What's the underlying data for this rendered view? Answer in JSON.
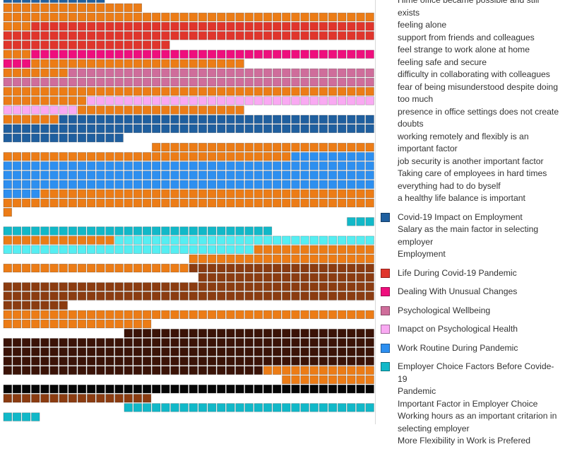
{
  "chart_data": {
    "type": "waffle",
    "title": "",
    "colors": {
      "dark_blue": "#1f5f9f",
      "red": "#e0352c",
      "magenta": "#ef0e7d",
      "mauve": "#cf6d9b",
      "pink": "#f9a9f2",
      "blue": "#2d8ff0",
      "teal": "#11b8c8",
      "cyan": "#55eef2",
      "orange": "#ec7c16",
      "brown": "#8b3c11",
      "dark_brown": "#3b1307",
      "black": "#050505"
    },
    "rows": [
      [
        [
          "dark_blue",
          11
        ]
      ],
      [
        [
          "orange",
          15
        ]
      ],
      [
        [
          "orange",
          40
        ]
      ],
      [
        [
          "orange",
          3
        ],
        [
          "red",
          37
        ]
      ],
      [
        [
          "red",
          40
        ]
      ],
      [
        [
          "red",
          18
        ]
      ],
      [
        [
          "orange",
          3
        ],
        [
          "magenta",
          37
        ]
      ],
      [
        [
          "magenta",
          3
        ],
        [
          "orange",
          23
        ]
      ],
      [
        [
          "orange",
          7
        ],
        [
          "mauve",
          33
        ]
      ],
      [
        [
          "mauve",
          40
        ]
      ],
      [
        [
          "orange",
          40
        ]
      ],
      [
        [
          "orange",
          9
        ],
        [
          "pink",
          31
        ]
      ],
      [
        [
          "pink",
          8
        ],
        [
          "orange",
          18
        ]
      ],
      [
        [
          "orange",
          6
        ],
        [
          "dark_blue",
          34
        ]
      ],
      [
        [
          "dark_blue",
          40
        ]
      ],
      [
        [
          "dark_blue",
          13
        ]
      ],
      [
        [
          "orange",
          24
        ]
      ],
      [
        [
          "orange",
          31
        ],
        [
          "blue",
          9
        ]
      ],
      [
        [
          "blue",
          40
        ]
      ],
      [
        [
          "blue",
          40
        ]
      ],
      [
        [
          "blue",
          40
        ]
      ],
      [
        [
          "blue",
          4
        ],
        [
          "orange",
          36
        ]
      ],
      [
        [
          "orange",
          40
        ]
      ],
      [
        [
          "orange",
          1
        ]
      ],
      [
        [
          "teal",
          3
        ]
      ],
      [
        [
          "teal",
          29
        ]
      ],
      [
        [
          "orange",
          12
        ],
        [
          "cyan",
          28
        ]
      ],
      [
        [
          "cyan",
          27
        ],
        [
          "orange",
          13
        ]
      ],
      [
        [
          "orange",
          20
        ]
      ],
      [
        [
          "orange",
          20
        ],
        [
          "brown",
          20
        ]
      ],
      [
        [
          "brown",
          19
        ]
      ],
      [
        [
          "brown",
          40
        ]
      ],
      [
        [
          "brown",
          40
        ]
      ],
      [
        [
          "brown",
          7
        ]
      ],
      [
        [
          "orange",
          40
        ]
      ],
      [
        [
          "orange",
          16
        ]
      ],
      [
        [
          "dark_brown",
          27
        ]
      ],
      [
        [
          "dark_brown",
          40
        ]
      ],
      [
        [
          "dark_brown",
          40
        ]
      ],
      [
        [
          "dark_brown",
          40
        ]
      ],
      [
        [
          "dark_brown",
          28
        ],
        [
          "orange",
          12
        ]
      ],
      [
        [
          "orange",
          10
        ]
      ],
      [
        [
          "black",
          40
        ]
      ],
      [
        [
          "brown",
          16
        ]
      ],
      [
        [
          "teal",
          27
        ]
      ],
      [
        [
          "teal",
          4
        ]
      ]
    ],
    "row_align": [
      "left",
      "left",
      "right",
      "left",
      "left",
      "left",
      "right",
      "left",
      "right",
      "left",
      "left",
      "right",
      "left",
      "right",
      "left",
      "left",
      "right",
      "left",
      "left",
      "left",
      "left",
      "left",
      "left",
      "left",
      "right",
      "left",
      "right",
      "left",
      "right",
      "left",
      "right",
      "left",
      "left",
      "left",
      "left",
      "left",
      "right",
      "left",
      "left",
      "left",
      "left",
      "right",
      "left",
      "left",
      "right",
      "left"
    ]
  },
  "legend": [
    {
      "color": "",
      "lines": [
        "Hime office became possible and still exists",
        "feeling alone",
        "support from friends and colleagues",
        "feel strange to work alone at home",
        "feeling safe and secure",
        "difficulty in collaborating with colleagues",
        "fear of being misunderstood despite doing",
        "too much",
        "presence in office settings does not create",
        "doubts",
        "working remotely and flexibly is an",
        "important factor",
        "job security is another important factor",
        "Taking care of employees in hard times",
        "everything had to do byself",
        "a healthy life balance is important"
      ]
    },
    {
      "color": "#1f5f9f",
      "lines": [
        "Covid-19 Impact on Employment",
        "Salary as the main factor in selecting",
        "employer",
        "Employment"
      ]
    },
    {
      "color": "#e0352c",
      "lines": [
        "Life During Covid-19 Pandemic"
      ]
    },
    {
      "color": "#ef0e7d",
      "lines": [
        "Dealing With Unusual Changes"
      ]
    },
    {
      "color": "#cf6d9b",
      "lines": [
        "Psychological Wellbeing"
      ]
    },
    {
      "color": "#f9a9f2",
      "lines": [
        "Imapct on Psychological Health"
      ]
    },
    {
      "color": "#2d8ff0",
      "lines": [
        "Work Routine During Pandemic"
      ]
    },
    {
      "color": "#11b8c8",
      "lines": [
        "Employer Choice Factors Before Covide-19",
        "Pandemic",
        "Important Factor in Employer Choice",
        "Working hours as an important critarion in",
        "selecting employer",
        "More Flexibility in Work is Prefered"
      ]
    }
  ]
}
